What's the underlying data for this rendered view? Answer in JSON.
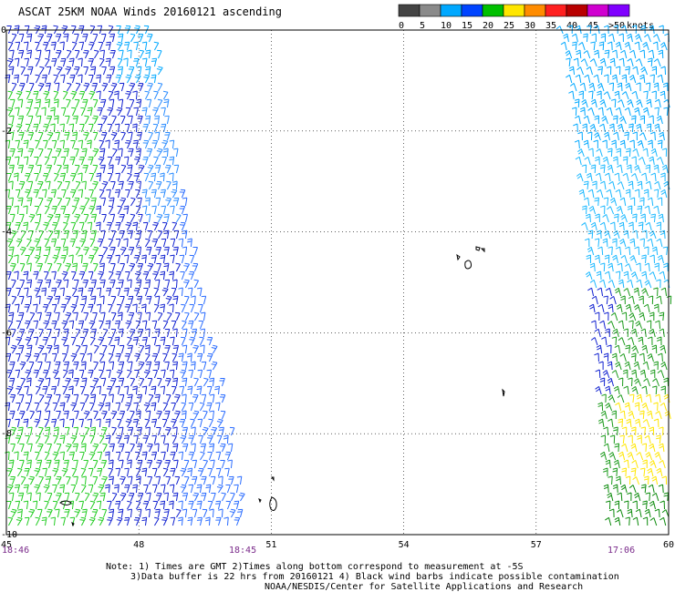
{
  "header": {
    "title": "ASCAT 25KM NOAA Winds 20160121 ascending"
  },
  "colorbar": {
    "unit_label": "knots",
    "ticks": [
      "0",
      "5",
      "10",
      "15",
      "20",
      "25",
      "30",
      "35",
      "40",
      "45",
      ">50"
    ],
    "colors": [
      "#444444",
      "#8a8a8a",
      "#00a8ff",
      "#0044ff",
      "#00c000",
      "#ffe600",
      "#ff8c00",
      "#ff2020",
      "#b80000",
      "#d000d0",
      "#8000ff"
    ]
  },
  "map": {
    "x_ticks": [
      "45",
      "48",
      "51",
      "54",
      "57",
      "60"
    ],
    "y_ticks": [
      "0",
      "-2",
      "-4",
      "-6",
      "-8",
      "-10"
    ],
    "lon_range": [
      45,
      60
    ],
    "lat_range": [
      -10,
      0
    ]
  },
  "pass_times": [
    "18:46",
    "18:45",
    "17:06"
  ],
  "notes": {
    "line1": "Note: 1) Times are GMT 2)Times along bottom correspond to measurement at -5S",
    "line2": "3)Data buffer is 22 hrs from 20160121 4) Black wind barbs indicate possible contamination",
    "line3": "NOAA/NESDIS/Center for Satellite Applications and Research"
  }
}
